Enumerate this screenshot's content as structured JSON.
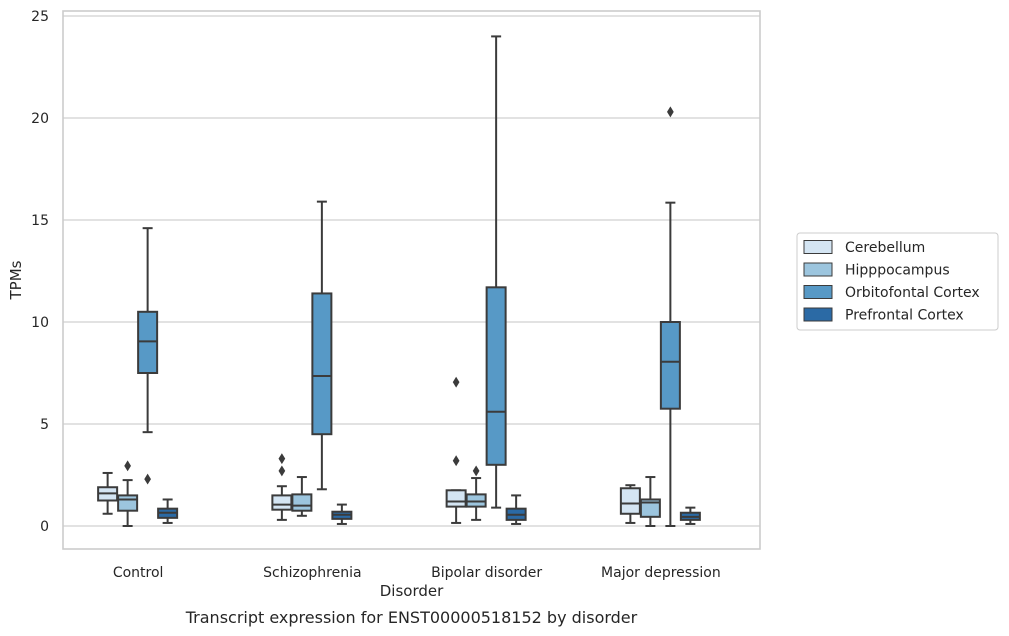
{
  "chart_data": {
    "type": "box",
    "title": "",
    "caption": "Transcript expression for ENST00000518152 by disorder",
    "xlabel": "Disorder",
    "ylabel": "TPMs",
    "ylim": [
      -1.1,
      25.3
    ],
    "yticks": [
      0,
      5,
      10,
      15,
      20,
      25
    ],
    "grid": "horizontal",
    "legend_position": "right",
    "categories": [
      "Control",
      "Schizophrenia",
      "Bipolar disorder",
      "Major depression"
    ],
    "series": [
      {
        "name": "Cerebellum",
        "color": "#d4e5f3",
        "boxes": [
          {
            "whislo": 0.6,
            "q1": 1.25,
            "med": 1.6,
            "q3": 1.9,
            "whishi": 2.6,
            "fliers": []
          },
          {
            "whislo": 0.3,
            "q1": 0.8,
            "med": 1.05,
            "q3": 1.5,
            "whishi": 1.95,
            "fliers": [
              2.7,
              3.3
            ]
          },
          {
            "whislo": 0.15,
            "q1": 0.95,
            "med": 1.2,
            "q3": 1.75,
            "whishi": 1.75,
            "fliers": [
              3.2,
              7.05
            ]
          },
          {
            "whislo": 0.15,
            "q1": 0.6,
            "med": 1.1,
            "q3": 1.85,
            "whishi": 2.0,
            "fliers": []
          }
        ]
      },
      {
        "name": "Hipppocampus",
        "color": "#9cc5de",
        "boxes": [
          {
            "whislo": 0.0,
            "q1": 0.75,
            "med": 1.3,
            "q3": 1.5,
            "whishi": 2.25,
            "fliers": [
              2.95
            ]
          },
          {
            "whislo": 0.5,
            "q1": 0.75,
            "med": 1.0,
            "q3": 1.55,
            "whishi": 2.4,
            "fliers": []
          },
          {
            "whislo": 0.3,
            "q1": 0.95,
            "med": 1.2,
            "q3": 1.55,
            "whishi": 2.35,
            "fliers": [
              2.7
            ]
          },
          {
            "whislo": 0.0,
            "q1": 0.45,
            "med": 1.15,
            "q3": 1.3,
            "whishi": 2.4,
            "fliers": []
          }
        ]
      },
      {
        "name": "Orbitofontal Cortex",
        "color": "#5799c6",
        "boxes": [
          {
            "whislo": 4.6,
            "q1": 7.5,
            "med": 9.05,
            "q3": 10.5,
            "whishi": 14.6,
            "fliers": [
              2.3
            ]
          },
          {
            "whislo": 1.8,
            "q1": 4.5,
            "med": 7.35,
            "q3": 11.4,
            "whishi": 15.9,
            "fliers": []
          },
          {
            "whislo": 0.9,
            "q1": 3.0,
            "med": 5.6,
            "q3": 11.7,
            "whishi": 24.0,
            "fliers": []
          },
          {
            "whislo": 0.0,
            "q1": 5.75,
            "med": 8.05,
            "q3": 10.0,
            "whishi": 15.85,
            "fliers": [
              20.3
            ]
          }
        ]
      },
      {
        "name": "Prefrontal Cortex",
        "color": "#2b6aa5",
        "boxes": [
          {
            "whislo": 0.15,
            "q1": 0.4,
            "med": 0.65,
            "q3": 0.85,
            "whishi": 1.3,
            "fliers": []
          },
          {
            "whislo": 0.1,
            "q1": 0.35,
            "med": 0.55,
            "q3": 0.7,
            "whishi": 1.05,
            "fliers": []
          },
          {
            "whislo": 0.1,
            "q1": 0.3,
            "med": 0.55,
            "q3": 0.85,
            "whishi": 1.5,
            "fliers": []
          },
          {
            "whislo": 0.1,
            "q1": 0.3,
            "med": 0.45,
            "q3": 0.65,
            "whishi": 0.9,
            "fliers": []
          }
        ]
      }
    ]
  }
}
